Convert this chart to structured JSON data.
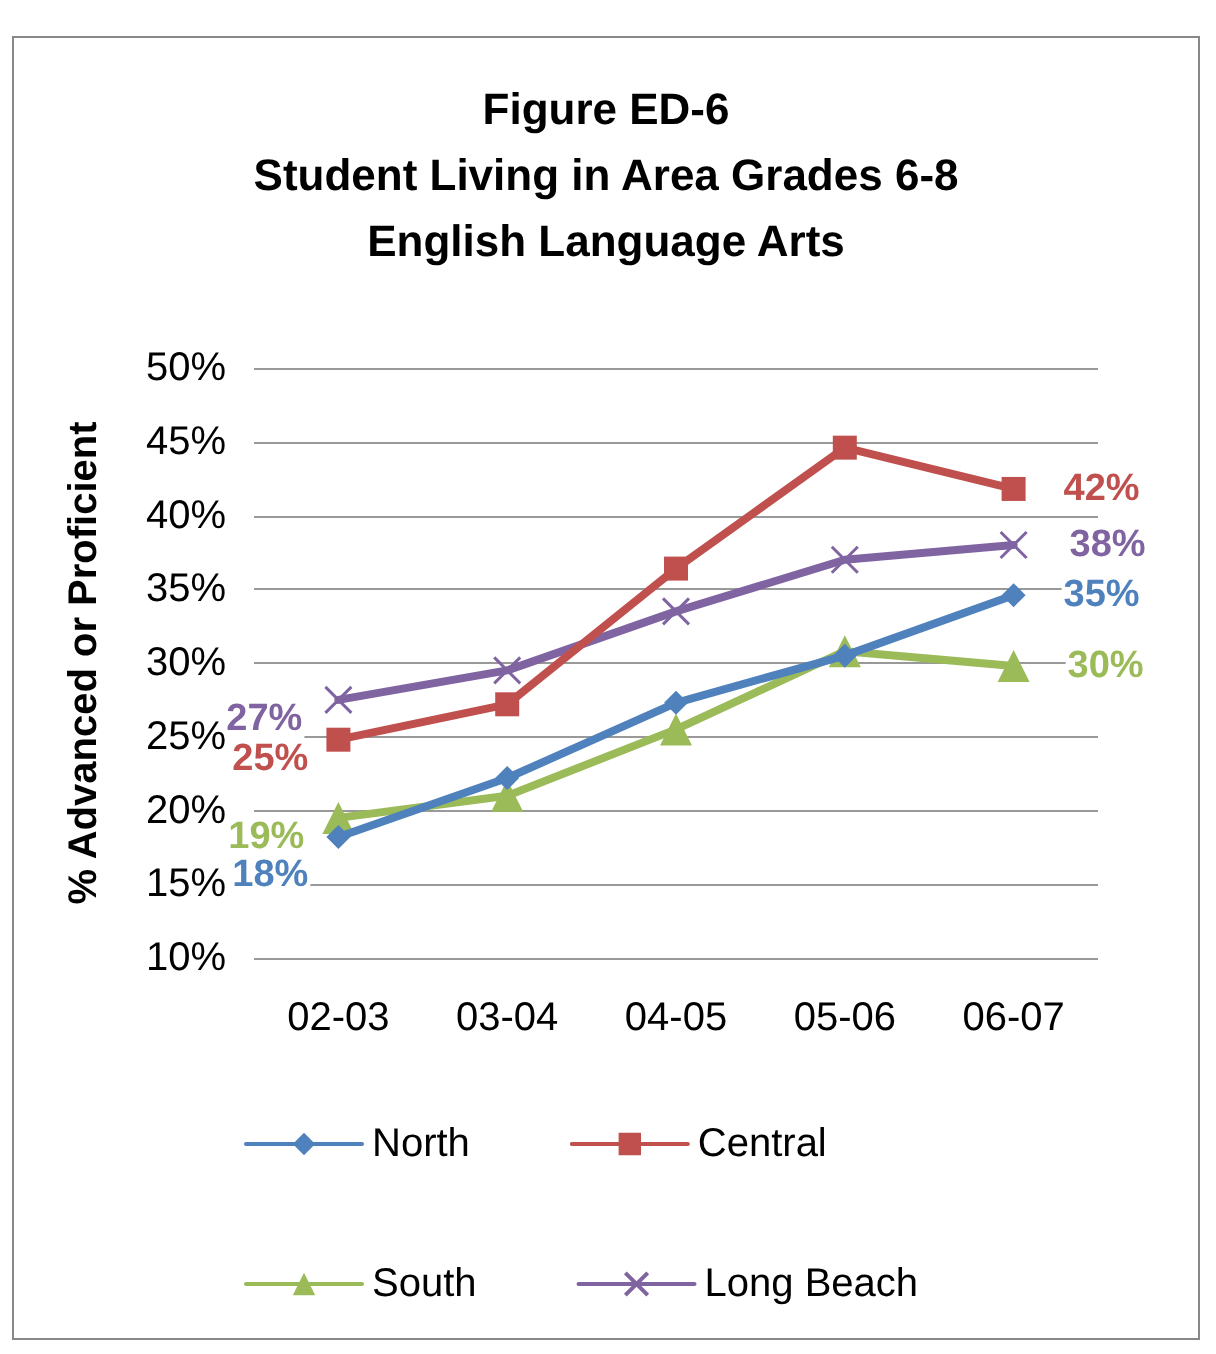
{
  "chart_data": {
    "type": "line",
    "title": "Figure ED-6\nStudent Living in Area Grades 6-8\nEnglish Language Arts",
    "ylabel": "% Advanced or Proficient",
    "categories": [
      "02-03",
      "03-04",
      "04-05",
      "05-06",
      "06-07"
    ],
    "series": [
      {
        "name": "North",
        "color": "#4f81bd",
        "marker": "diamond",
        "values": [
          18.2,
          22.2,
          27.3,
          30.5,
          34.6
        ],
        "value_labels": [
          "18%",
          null,
          null,
          null,
          "35%"
        ]
      },
      {
        "name": "Central",
        "color": "#c0504d",
        "marker": "square",
        "values": [
          24.8,
          27.2,
          36.4,
          44.6,
          41.8
        ],
        "value_labels": [
          "25%",
          null,
          null,
          null,
          "42%"
        ]
      },
      {
        "name": "South",
        "color": "#9bbb59",
        "marker": "triangle",
        "values": [
          19.5,
          21,
          25.5,
          30.8,
          29.8
        ],
        "value_labels": [
          "19%",
          null,
          null,
          null,
          "30%"
        ]
      },
      {
        "name": "Long Beach",
        "color": "#8064a2",
        "marker": "cross",
        "values": [
          27.5,
          29.5,
          33.5,
          37,
          38
        ],
        "value_labels": [
          "27%",
          null,
          null,
          null,
          "38%"
        ]
      }
    ],
    "ylim": [
      10,
      50
    ],
    "yticks": [
      {
        "value": 10,
        "label": "10%"
      },
      {
        "value": 15,
        "label": "15%"
      },
      {
        "value": 20,
        "label": "20%"
      },
      {
        "value": 25,
        "label": "25%"
      },
      {
        "value": 30,
        "label": "30%"
      },
      {
        "value": 35,
        "label": "35%"
      },
      {
        "value": 40,
        "label": "40%"
      },
      {
        "value": 45,
        "label": "45%"
      },
      {
        "value": 50,
        "label": "50%"
      }
    ],
    "grid": "y",
    "legend": "bottom"
  }
}
